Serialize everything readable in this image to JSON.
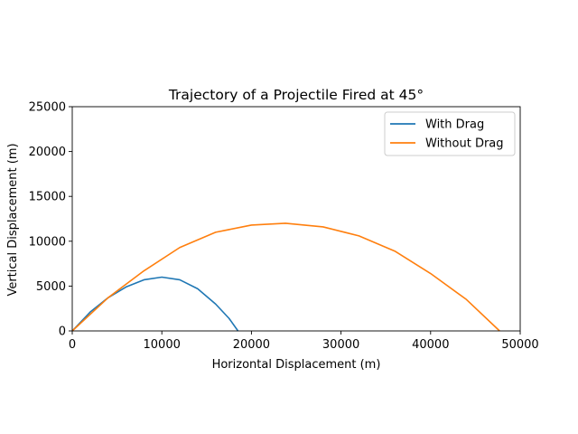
{
  "chart_data": {
    "type": "line",
    "title": "Trajectory of a Projectile Fired at 45°",
    "xlabel": "Horizontal Displacement (m)",
    "ylabel": "Vertical Displacement (m)",
    "xlim": [
      0,
      50000
    ],
    "ylim": [
      0,
      25000
    ],
    "xticks": [
      0,
      10000,
      20000,
      30000,
      40000,
      50000
    ],
    "yticks": [
      0,
      5000,
      10000,
      15000,
      20000,
      25000
    ],
    "xtick_labels": [
      "0",
      "10000",
      "20000",
      "30000",
      "40000",
      "50000"
    ],
    "ytick_labels": [
      "0",
      "5000",
      "10000",
      "15000",
      "20000",
      "25000"
    ],
    "grid": false,
    "legend_position": "top-right",
    "series": [
      {
        "name": "With Drag",
        "color": "#1f77b4",
        "x": [
          0,
          2000,
          4000,
          6000,
          8000,
          10000,
          12000,
          14000,
          16000,
          17500,
          18500
        ],
        "y": [
          0,
          2100,
          3700,
          4900,
          5700,
          6000,
          5700,
          4700,
          3000,
          1400,
          0
        ]
      },
      {
        "name": "Without Drag",
        "color": "#ff7f0e",
        "x": [
          0,
          4000,
          8000,
          12000,
          16000,
          20000,
          23800,
          28000,
          32000,
          36000,
          40000,
          44000,
          47700
        ],
        "y": [
          0,
          3700,
          6700,
          9300,
          11000,
          11800,
          12000,
          11600,
          10600,
          8900,
          6400,
          3500,
          0
        ]
      }
    ]
  }
}
